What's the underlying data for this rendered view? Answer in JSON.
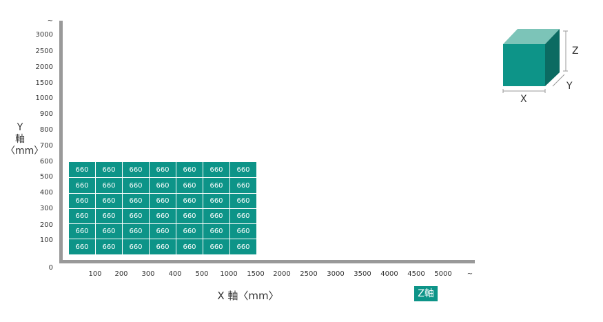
{
  "chart_data": {
    "type": "heatmap",
    "y_axis": {
      "label_lines": [
        "Y",
        "軸",
        "〈mm〉"
      ],
      "ticks": [
        "~",
        "3000",
        "2500",
        "2000",
        "1500",
        "1000",
        "900",
        "800",
        "700",
        "600",
        "500",
        "400",
        "300",
        "200",
        "100",
        "0"
      ]
    },
    "x_axis": {
      "label": "X 軸〈mm〉",
      "ticks": [
        "100",
        "200",
        "300",
        "400",
        "500",
        "1000",
        "1500",
        "2000",
        "2500",
        "3000",
        "3500",
        "4000",
        "4500",
        "5000",
        "~"
      ]
    },
    "z_label": "Z軸",
    "grid": {
      "x_categories": [
        "100",
        "200",
        "300",
        "400",
        "500",
        "1000",
        "1500"
      ],
      "y_categories": [
        "600",
        "500",
        "400",
        "300",
        "200",
        "100"
      ],
      "values": [
        [
          660,
          660,
          660,
          660,
          660,
          660,
          660
        ],
        [
          660,
          660,
          660,
          660,
          660,
          660,
          660
        ],
        [
          660,
          660,
          660,
          660,
          660,
          660,
          660
        ],
        [
          660,
          660,
          660,
          660,
          660,
          660,
          660
        ],
        [
          660,
          660,
          660,
          660,
          660,
          660,
          660
        ],
        [
          660,
          660,
          660,
          660,
          660,
          660,
          660
        ]
      ]
    },
    "cube_legend": {
      "x": "X",
      "y": "Y",
      "z": "Z"
    },
    "colors": {
      "cell": "#0d9488",
      "axis": "#999999",
      "cube_front": "#0d9488",
      "cube_top": "#7cc4b8",
      "cube_side": "#0b6b62"
    }
  }
}
